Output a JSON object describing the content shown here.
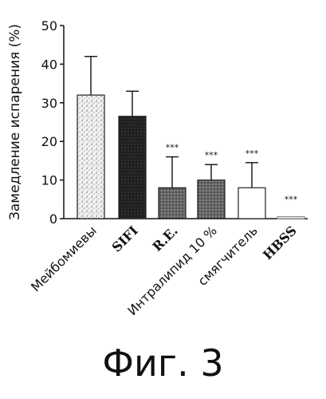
{
  "figure_label": "Фиг. 3",
  "chart_data": {
    "type": "bar",
    "ylabel": "Замедление испарения (%)",
    "ylim": [
      0,
      50
    ],
    "yticks": [
      0,
      10,
      20,
      30,
      40,
      50
    ],
    "categories": [
      "Мейбомиевы",
      "SIFI",
      "R.E.",
      "Интралипид 10 %",
      "смягчитель",
      "HBSS"
    ],
    "values": [
      32,
      26.5,
      8,
      10,
      8,
      0.5
    ],
    "errors": [
      10,
      6.5,
      8,
      4,
      6.5,
      0
    ],
    "significance": [
      "",
      "",
      "***",
      "***",
      "***",
      "***"
    ],
    "bar_styles": [
      "light-stipple",
      "dark-stipple",
      "medium-stipple",
      "medium-stipple",
      "white",
      "white"
    ]
  }
}
